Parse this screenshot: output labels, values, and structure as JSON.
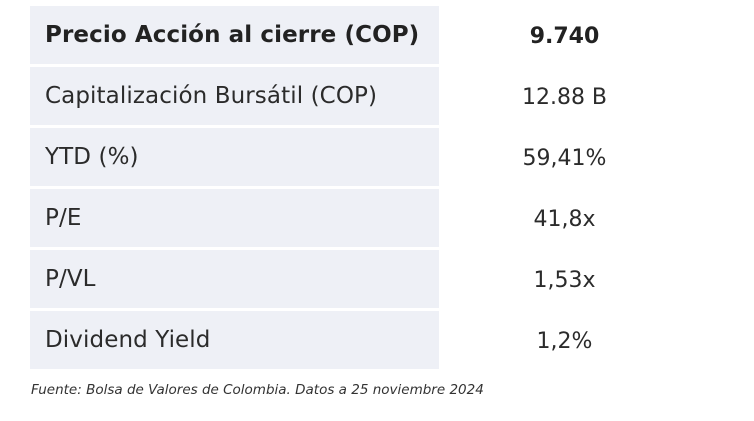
{
  "table": {
    "header": {
      "label": "Precio Acción al cierre (COP)",
      "value": "9.740"
    },
    "rows": [
      {
        "label": "Capitalización Bursátil (COP)",
        "value": "12.88 B"
      },
      {
        "label": "YTD (%)",
        "value": "59,41%"
      },
      {
        "label": "P/E",
        "value": "41,8x"
      },
      {
        "label": "P/VL",
        "value": "1,53x"
      },
      {
        "label": "Dividend Yield",
        "value": "1,2%"
      }
    ]
  },
  "footer": {
    "source": "Fuente: Bolsa de Valores de Colombia. Datos a 25 noviembre 2024"
  },
  "colors": {
    "label_background": "#eef0f6",
    "text": "#2b2b2b"
  }
}
